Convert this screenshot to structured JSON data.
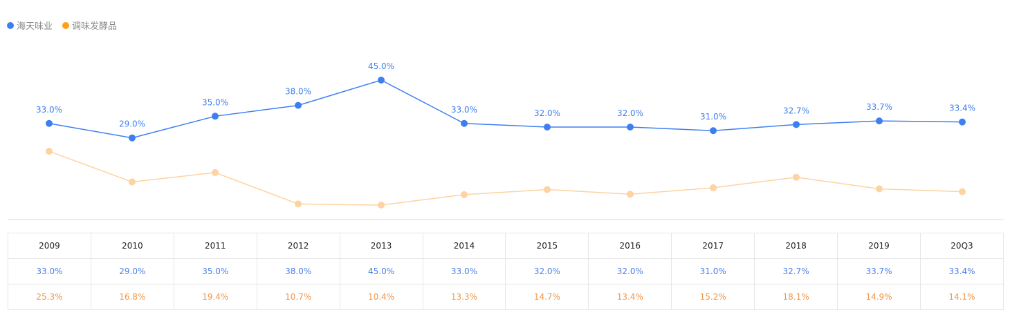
{
  "legend": [
    {
      "label": "海天味业",
      "color": "#3d7ff0"
    },
    {
      "label": "调味发酵品",
      "color": "#ff9f1a"
    }
  ],
  "chart_data": {
    "type": "line",
    "categories": [
      "2009",
      "2010",
      "2011",
      "2012",
      "2013",
      "2014",
      "2015",
      "2016",
      "2017",
      "2018",
      "2019",
      "20Q3"
    ],
    "series": [
      {
        "name": "海天味业",
        "color": "#3d7ff0",
        "values": [
          33.0,
          29.0,
          35.0,
          38.0,
          45.0,
          33.0,
          32.0,
          32.0,
          31.0,
          32.7,
          33.7,
          33.4
        ],
        "labels": [
          "33.0%",
          "29.0%",
          "35.0%",
          "38.0%",
          "45.0%",
          "33.0%",
          "32.0%",
          "32.0%",
          "31.0%",
          "32.7%",
          "33.7%",
          "33.4%"
        ]
      },
      {
        "name": "调味发酵品",
        "color": "#fdd3a1",
        "values": [
          25.3,
          16.8,
          19.4,
          10.7,
          10.4,
          13.3,
          14.7,
          13.4,
          15.2,
          18.1,
          14.9,
          14.1
        ],
        "labels": [
          "25.3%",
          "16.8%",
          "19.4%",
          "10.7%",
          "10.4%",
          "13.3%",
          "14.7%",
          "13.4%",
          "15.2%",
          "18.1%",
          "14.9%",
          "14.1%"
        ]
      }
    ]
  }
}
